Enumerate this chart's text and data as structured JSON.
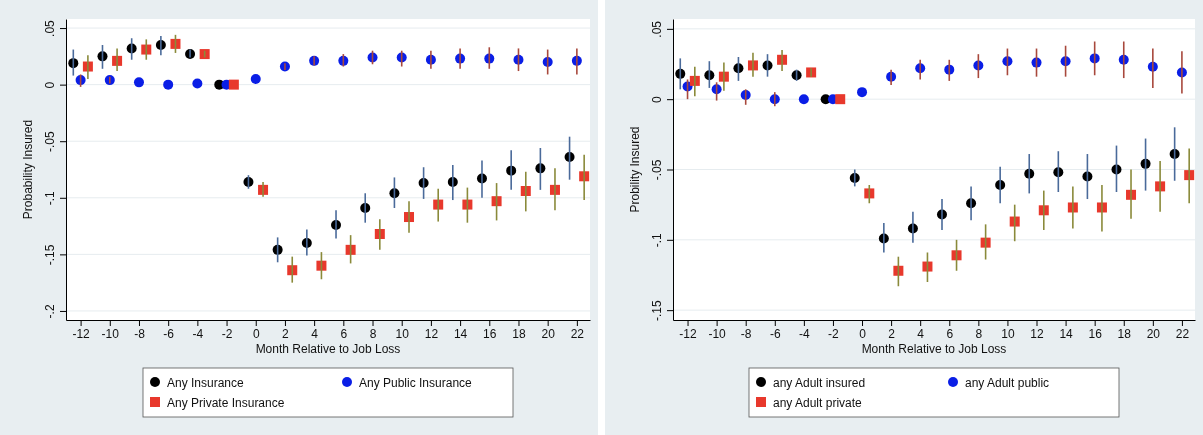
{
  "chart_data": [
    {
      "type": "scatter",
      "xlabel": "Month Relative to Job Loss",
      "ylabel": "Probability Insured",
      "xlim": [
        -13,
        22.9
      ],
      "ylim": [
        -0.208,
        0.058
      ],
      "xticks": [
        -12,
        -10,
        -8,
        -6,
        -4,
        -2,
        0,
        2,
        4,
        6,
        8,
        10,
        12,
        14,
        16,
        18,
        20,
        22
      ],
      "yticks": [
        {
          "value": 0.05,
          "label": ".05"
        },
        0,
        {
          "value": -0.05,
          "label": "-.05"
        },
        {
          "value": -0.1,
          "label": "-.1"
        },
        {
          "value": -0.15,
          "label": "-.15"
        },
        {
          "value": -0.2,
          "label": "-.2"
        }
      ],
      "grid": "y",
      "legend": "bottom",
      "series": [
        {
          "name": "Any Insurance",
          "color": "#000000",
          "marker": "circle",
          "x": [
            -12.5,
            -10.5,
            -8.5,
            -6.5,
            -4.5,
            -2.5,
            -0.5,
            1.5,
            3.5,
            5.5,
            7.5,
            9.5,
            11.5,
            13.5,
            15.5,
            17.5,
            19.5,
            21.5
          ],
          "values": [
            0.019,
            0.025,
            0.032,
            0.035,
            0.027,
            0,
            -0.086,
            -0.146,
            -0.14,
            -0.124,
            -0.109,
            -0.096,
            -0.087,
            -0.086,
            -0.083,
            -0.076,
            -0.074,
            -0.064
          ],
          "errors": [
            [
              0.008,
              0.031
            ],
            [
              0.014,
              0.035
            ],
            [
              0.022,
              0.041
            ],
            [
              0.026,
              0.043
            ],
            [
              0.024,
              0.031
            ],
            null,
            [
              -0.092,
              -0.08
            ],
            [
              -0.157,
              -0.135
            ],
            [
              -0.151,
              -0.128
            ],
            [
              -0.136,
              -0.111
            ],
            [
              -0.122,
              -0.096
            ],
            [
              -0.109,
              -0.082
            ],
            [
              -0.101,
              -0.073
            ],
            [
              -0.102,
              -0.071
            ],
            [
              -0.1,
              -0.067
            ],
            [
              -0.093,
              -0.058
            ],
            [
              -0.093,
              -0.056
            ],
            [
              -0.084,
              -0.046
            ]
          ]
        },
        {
          "name": "Any Public Insurance",
          "color": "#0a1ee6",
          "marker": "circle",
          "x": [
            -12,
            -10,
            -8,
            -6,
            -4,
            -2,
            0,
            2,
            4,
            6,
            8,
            10,
            12,
            14,
            16,
            18,
            20,
            22
          ],
          "values": [
            0.004,
            0.004,
            0.002,
            0,
            0.001,
            0,
            0.005,
            0.016,
            0.021,
            0.021,
            0.024,
            0.024,
            0.022,
            0.023,
            0.023,
            0.022,
            0.02,
            0.021
          ],
          "errors": [
            [
              -0.002,
              0.009
            ],
            [
              0.001,
              0.007
            ],
            null,
            null,
            null,
            null,
            null,
            [
              0.013,
              0.019
            ],
            [
              0.017,
              0.025
            ],
            [
              0.016,
              0.027
            ],
            [
              0.018,
              0.03
            ],
            [
              0.016,
              0.03
            ],
            [
              0.014,
              0.03
            ],
            [
              0.014,
              0.032
            ],
            [
              0.014,
              0.033
            ],
            [
              0.012,
              0.032
            ],
            [
              0.009,
              0.031
            ],
            [
              0.009,
              0.032
            ]
          ]
        },
        {
          "name": "Any Private Insurance",
          "color": "#e8382c",
          "marker": "square",
          "x": [
            -11.5,
            -9.5,
            -7.5,
            -5.5,
            -3.5,
            -1.5,
            0.5,
            2.5,
            4.5,
            6.5,
            8.5,
            10.5,
            12.5,
            14.5,
            16.5,
            18.5,
            20.5,
            22.5
          ],
          "values": [
            0.016,
            0.021,
            0.031,
            0.036,
            0.027,
            0,
            -0.093,
            -0.164,
            -0.16,
            -0.146,
            -0.132,
            -0.117,
            -0.106,
            -0.106,
            -0.103,
            -0.094,
            -0.093,
            -0.081
          ],
          "errors": [
            [
              0.005,
              0.026
            ],
            [
              0.012,
              0.032
            ],
            [
              0.022,
              0.04
            ],
            [
              0.028,
              0.044
            ],
            [
              0.024,
              0.03
            ],
            null,
            [
              -0.099,
              -0.086
            ],
            [
              -0.175,
              -0.152
            ],
            [
              -0.172,
              -0.148
            ],
            [
              -0.158,
              -0.133
            ],
            [
              -0.146,
              -0.119
            ],
            [
              -0.131,
              -0.103
            ],
            [
              -0.121,
              -0.092
            ],
            [
              -0.122,
              -0.091
            ],
            [
              -0.12,
              -0.087
            ],
            [
              -0.112,
              -0.077
            ],
            [
              -0.111,
              -0.074
            ],
            [
              -0.102,
              -0.062
            ]
          ]
        }
      ]
    },
    {
      "type": "scatter",
      "xlabel": "Month Relative to Job Loss",
      "ylabel": "Probility Insured",
      "xlim": [
        -13,
        22.9
      ],
      "ylim": [
        -0.157,
        0.057
      ],
      "xticks": [
        -12,
        -10,
        -8,
        -6,
        -4,
        -2,
        0,
        2,
        4,
        6,
        8,
        10,
        12,
        14,
        16,
        18,
        20,
        22
      ],
      "yticks": [
        {
          "value": 0.05,
          "label": ".05"
        },
        0,
        {
          "value": -0.05,
          "label": "-.05"
        },
        {
          "value": -0.1,
          "label": "-.1"
        },
        {
          "value": -0.15,
          "label": "-.15"
        }
      ],
      "grid": "y",
      "legend": "bottom",
      "series": [
        {
          "name": "any Adult insured",
          "color": "#000000",
          "marker": "circle",
          "x": [
            -12.5,
            -10.5,
            -8.5,
            -6.5,
            -4.5,
            -2.5,
            -0.5,
            1.5,
            3.5,
            5.5,
            7.5,
            9.5,
            11.5,
            13.5,
            15.5,
            17.5,
            19.5,
            21.5
          ],
          "values": [
            0.018,
            0.017,
            0.022,
            0.024,
            0.017,
            0,
            -0.056,
            -0.099,
            -0.092,
            -0.082,
            -0.074,
            -0.061,
            -0.053,
            -0.052,
            -0.055,
            -0.05,
            -0.046,
            -0.039
          ],
          "errors": [
            [
              0.007,
              0.029
            ],
            [
              0.008,
              0.027
            ],
            [
              0.013,
              0.03
            ],
            [
              0.016,
              0.032
            ],
            [
              0.013,
              0.021
            ],
            null,
            [
              -0.062,
              -0.05
            ],
            [
              -0.109,
              -0.088
            ],
            [
              -0.102,
              -0.08
            ],
            [
              -0.093,
              -0.071
            ],
            [
              -0.086,
              -0.062
            ],
            [
              -0.074,
              -0.048
            ],
            [
              -0.067,
              -0.039
            ],
            [
              -0.066,
              -0.037
            ],
            [
              -0.071,
              -0.039
            ],
            [
              -0.066,
              -0.033
            ],
            [
              -0.065,
              -0.028
            ],
            [
              -0.058,
              -0.02
            ]
          ]
        },
        {
          "name": "any Adult public",
          "color": "#0a1ee6",
          "marker": "circle",
          "x": [
            -12,
            -10,
            -8,
            -6,
            -4,
            -2,
            0,
            2,
            4,
            6,
            8,
            10,
            12,
            14,
            16,
            18,
            20,
            22
          ],
          "values": [
            0.009,
            0.007,
            0.003,
            0,
            0,
            0,
            0.005,
            0.016,
            0.022,
            0.021,
            0.024,
            0.027,
            0.026,
            0.027,
            0.029,
            0.028,
            0.023,
            0.019
          ],
          "errors": [
            [
              0,
              0.014
            ],
            [
              -0.001,
              0.012
            ],
            [
              -0.004,
              0.007
            ],
            [
              -0.005,
              0.005
            ],
            null,
            null,
            null,
            [
              0.01,
              0.021
            ],
            [
              0.014,
              0.028
            ],
            [
              0.013,
              0.028
            ],
            [
              0.015,
              0.032
            ],
            [
              0.017,
              0.036
            ],
            [
              0.016,
              0.036
            ],
            [
              0.016,
              0.038
            ],
            [
              0.017,
              0.041
            ],
            [
              0.015,
              0.041
            ],
            [
              0.008,
              0.036
            ],
            [
              0.004,
              0.034
            ]
          ]
        },
        {
          "name": "any Adult private",
          "color": "#e8382c",
          "marker": "square",
          "x": [
            -11.5,
            -9.5,
            -7.5,
            -5.5,
            -3.5,
            -1.5,
            0.5,
            2.5,
            4.5,
            6.5,
            8.5,
            10.5,
            12.5,
            14.5,
            16.5,
            18.5,
            20.5,
            22.5
          ],
          "values": [
            0.013,
            0.016,
            0.024,
            0.028,
            0.019,
            0,
            -0.067,
            -0.122,
            -0.119,
            -0.111,
            -0.102,
            -0.087,
            -0.079,
            -0.077,
            -0.077,
            -0.068,
            -0.062,
            -0.054
          ],
          "errors": [
            [
              0.002,
              0.023
            ],
            [
              0.006,
              0.026
            ],
            [
              0.016,
              0.033
            ],
            [
              0.02,
              0.035
            ],
            [
              0.016,
              0.022
            ],
            null,
            [
              -0.074,
              -0.061
            ],
            [
              -0.133,
              -0.112
            ],
            [
              -0.13,
              -0.109
            ],
            [
              -0.122,
              -0.1
            ],
            [
              -0.114,
              -0.089
            ],
            [
              -0.101,
              -0.075
            ],
            [
              -0.093,
              -0.065
            ],
            [
              -0.092,
              -0.062
            ],
            [
              -0.094,
              -0.061
            ],
            [
              -0.085,
              -0.05
            ],
            [
              -0.08,
              -0.044
            ],
            [
              -0.074,
              -0.035
            ]
          ]
        }
      ]
    }
  ]
}
